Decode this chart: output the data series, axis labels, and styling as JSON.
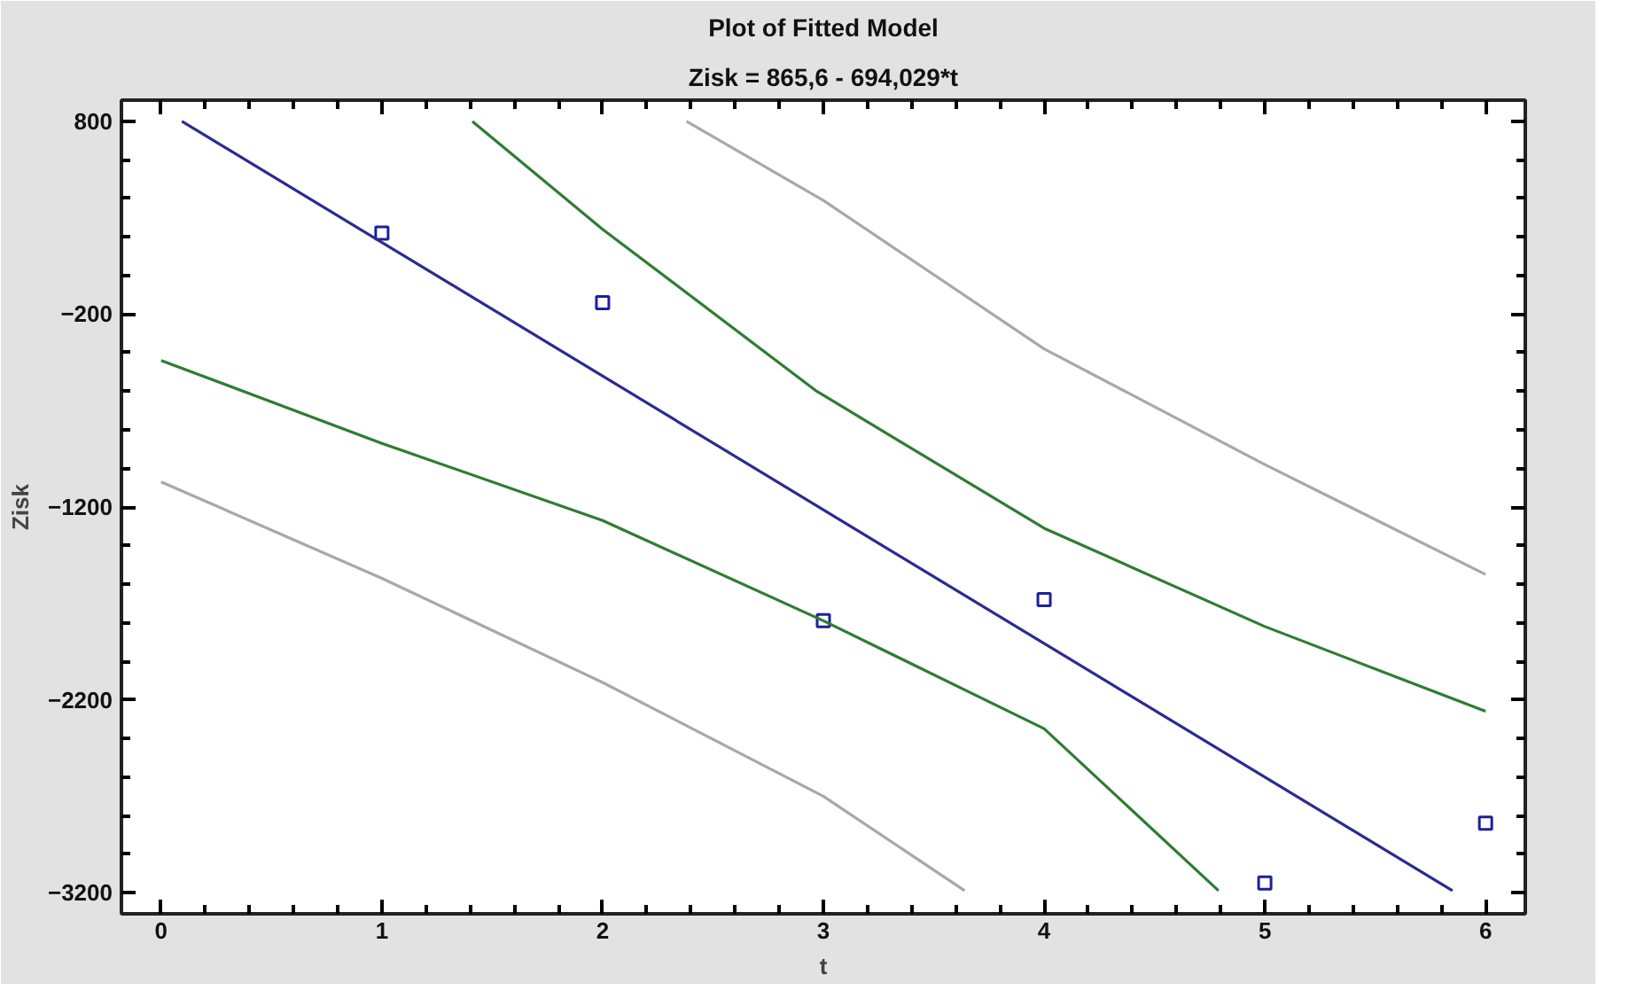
{
  "chart_data": {
    "type": "scatter",
    "title": "Plot of Fitted Model",
    "subtitle": "Zisk = 865,6 - 694,029*t",
    "xlabel": "t",
    "ylabel": "Zisk",
    "xlim": [
      -0.18,
      6.18
    ],
    "xticks": [
      0,
      1,
      2,
      3,
      4,
      5,
      6
    ],
    "ylim": [
      -3310,
      910
    ],
    "yticks": [
      800,
      -200,
      -1200,
      -2200,
      -3200
    ],
    "grid": false,
    "series": [
      {
        "color": "#1f1f9f",
        "marker": "square",
        "x": [
          1,
          2,
          3,
          4,
          5,
          6
        ],
        "values": [
          220,
          -140,
          -1790,
          -1680,
          -3150,
          -2840
        ]
      },
      {
        "type": "line",
        "color": "#2b2b90",
        "x": [
          0.094,
          5.85
        ],
        "values": [
          800,
          -3190
        ]
      },
      {
        "type": "line",
        "color": "#2e7d32",
        "x": [
          1.41,
          2,
          2.97,
          4,
          5,
          6
        ],
        "values": [
          800,
          240,
          -600,
          -1310,
          -1820,
          -2260
        ]
      },
      {
        "type": "line",
        "color": "#2e7d32",
        "x": [
          0,
          1,
          2,
          3,
          4,
          4.79
        ],
        "values": [
          -440,
          -870,
          -1270,
          -1790,
          -2350,
          -3190
        ]
      },
      {
        "type": "line",
        "color": "#a8a8a8",
        "x": [
          2.38,
          3,
          4,
          5,
          6
        ],
        "values": [
          800,
          390,
          -380,
          -980,
          -1550
        ]
      },
      {
        "type": "line",
        "color": "#a8a8a8",
        "x": [
          0,
          1,
          2,
          3,
          3.64
        ],
        "values": [
          -1070,
          -1570,
          -2110,
          -2700,
          -3190
        ]
      }
    ]
  }
}
